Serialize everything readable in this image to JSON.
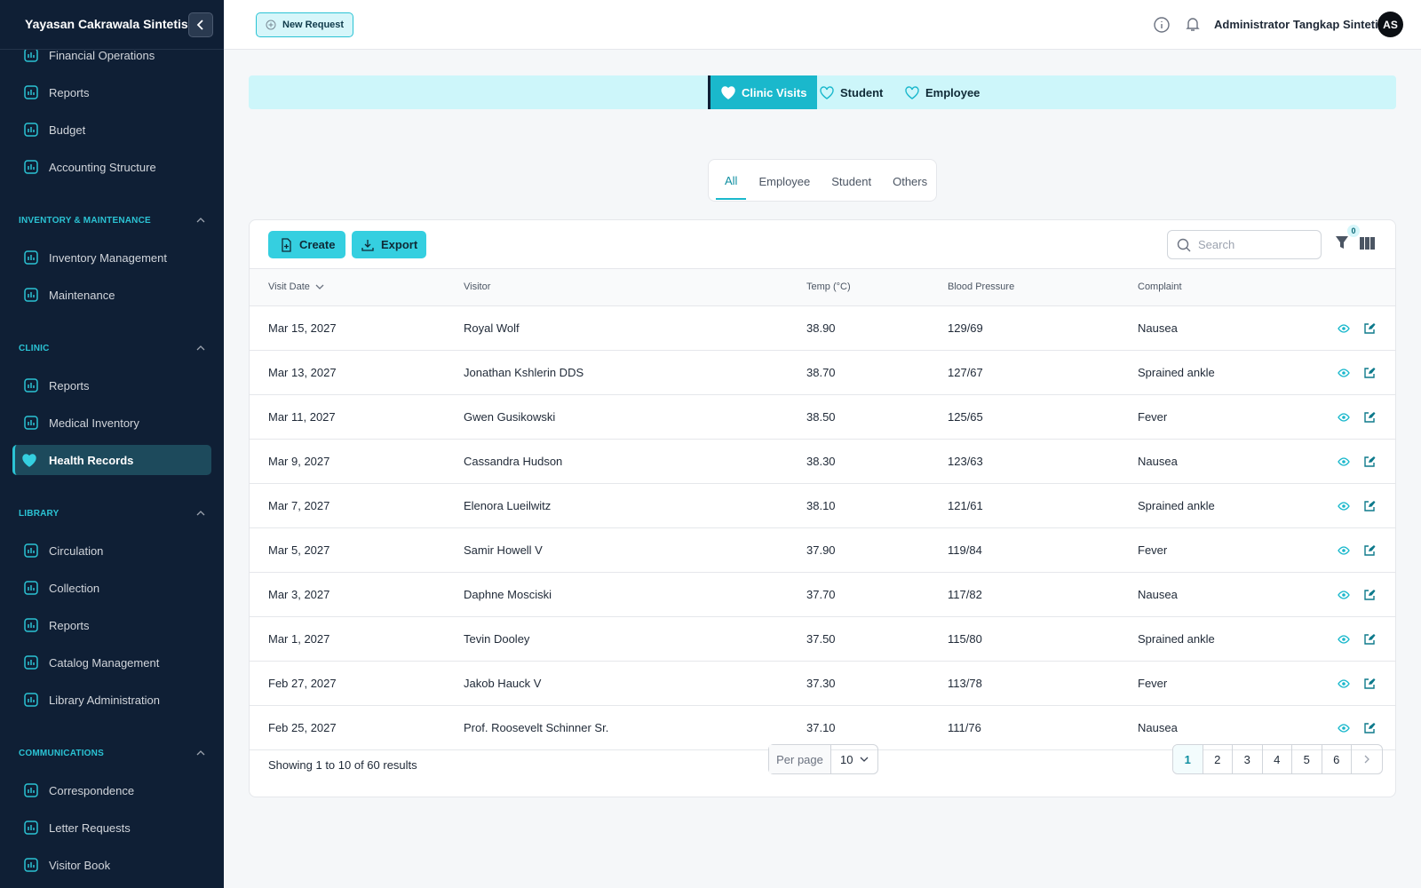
{
  "sidebar": {
    "brand": "Yayasan Cakrawala Sintetis",
    "groups": [
      {
        "items": [
          {
            "label": "Financial Operations"
          },
          {
            "label": "Reports"
          },
          {
            "label": "Budget"
          },
          {
            "label": "Accounting Structure"
          }
        ]
      },
      {
        "title": "INVENTORY & MAINTENANCE",
        "items": [
          {
            "label": "Inventory Management"
          },
          {
            "label": "Maintenance"
          }
        ]
      },
      {
        "title": "CLINIC",
        "items": [
          {
            "label": "Reports"
          },
          {
            "label": "Medical Inventory"
          },
          {
            "label": "Health Records",
            "active": true
          }
        ]
      },
      {
        "title": "LIBRARY",
        "items": [
          {
            "label": "Circulation"
          },
          {
            "label": "Collection"
          },
          {
            "label": "Reports"
          },
          {
            "label": "Catalog Management"
          },
          {
            "label": "Library Administration"
          }
        ]
      },
      {
        "title": "COMMUNICATIONS",
        "items": [
          {
            "label": "Correspondence"
          },
          {
            "label": "Letter Requests"
          },
          {
            "label": "Visitor Book"
          }
        ]
      }
    ]
  },
  "header": {
    "new_request": "New Request",
    "user": "Administrator Tangkap Sintetis",
    "initials": "AS"
  },
  "tabs": [
    "Clinic Visits",
    "Student",
    "Employee"
  ],
  "subtabs": [
    "All",
    "Employee",
    "Student",
    "Others"
  ],
  "toolbar": {
    "create": "Create",
    "export": "Export",
    "search": "Search",
    "filter_count": 0
  },
  "table": {
    "columns": [
      "Visit Date",
      "Visitor",
      "Temp (°C)",
      "Blood Pressure",
      "Complaint"
    ],
    "rows": [
      [
        "Mar 15, 2027",
        "Royal Wolf",
        "38.90",
        "129/69",
        "Nausea"
      ],
      [
        "Mar 13, 2027",
        "Jonathan Kshlerin DDS",
        "38.70",
        "127/67",
        "Sprained ankle"
      ],
      [
        "Mar 11, 2027",
        "Gwen Gusikowski",
        "38.50",
        "125/65",
        "Fever"
      ],
      [
        "Mar 9, 2027",
        "Cassandra Hudson",
        "38.30",
        "123/63",
        "Nausea"
      ],
      [
        "Mar 7, 2027",
        "Elenora Lueilwitz",
        "38.10",
        "121/61",
        "Sprained ankle"
      ],
      [
        "Mar 5, 2027",
        "Samir Howell V",
        "37.90",
        "119/84",
        "Fever"
      ],
      [
        "Mar 3, 2027",
        "Daphne Mosciski",
        "37.70",
        "117/82",
        "Nausea"
      ],
      [
        "Mar 1, 2027",
        "Tevin Dooley",
        "37.50",
        "115/80",
        "Sprained ankle"
      ],
      [
        "Feb 27, 2027",
        "Jakob Hauck V",
        "37.30",
        "113/78",
        "Fever"
      ],
      [
        "Feb 25, 2027",
        "Prof. Roosevelt Schinner Sr.",
        "37.10",
        "111/76",
        "Nausea"
      ]
    ]
  },
  "footer": {
    "summary": "Showing 1 to 10 of 60 results",
    "per_page_label": "Per page",
    "per_page": 10,
    "pages": [
      1,
      2,
      3,
      4,
      5,
      6
    ]
  }
}
